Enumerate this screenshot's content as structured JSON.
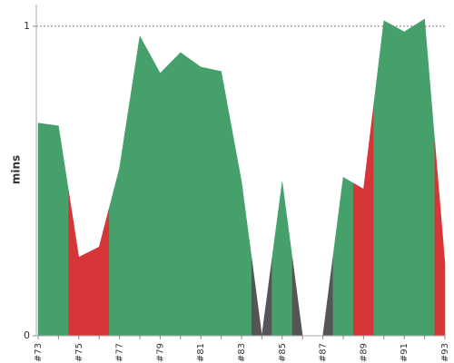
{
  "chart_data": {
    "type": "area",
    "y_label": "mins",
    "categories": [
      "#73",
      null,
      "#75",
      null,
      "#77",
      null,
      "#79",
      null,
      "#81",
      null,
      "#83",
      null,
      "#85",
      null,
      "#87",
      null,
      "#89",
      null,
      "#91",
      null,
      "#93"
    ],
    "values": [
      0.687,
      0.678,
      0.254,
      0.287,
      0.541,
      0.968,
      0.848,
      0.915,
      0.868,
      0.854,
      0.497,
      0,
      0.497,
      0,
      0,
      0.512,
      0.474,
      1.018,
      0.982,
      1.023,
      0.234
    ],
    "colors": [
      "#45a06c",
      "#45a06c",
      "#d63637",
      "#d63637",
      "#45a06c",
      "#45a06c",
      "#45a06c",
      "#45a06c",
      "#45a06c",
      "#45a06c",
      "#45a06c",
      "#555555",
      "#45a06c",
      "#555555",
      "#555555",
      "#45a06c",
      "#d63637",
      "#45a06c",
      "#45a06c",
      "#45a06c",
      "#d63637"
    ],
    "ylim": [
      0,
      1.07
    ],
    "yticks": [
      0,
      1
    ],
    "grid": true
  }
}
